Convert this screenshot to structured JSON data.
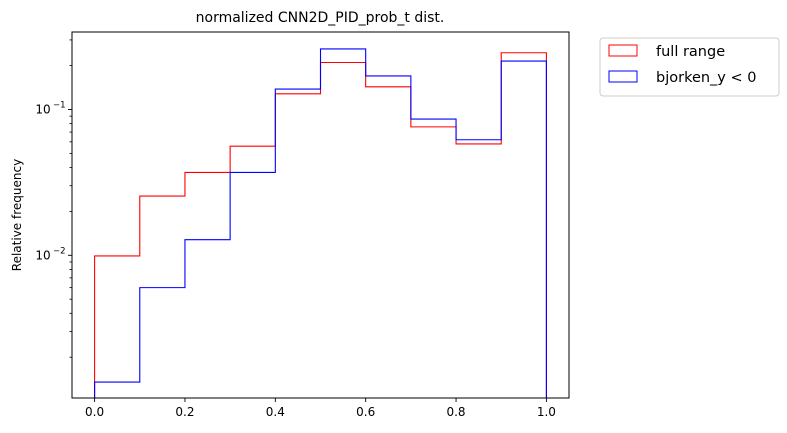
{
  "chart_data": {
    "type": "histogram-step",
    "title": "normalized CNN2D_PID_prob_t dist.",
    "xlabel": "",
    "ylabel": "Relative frequency",
    "yscale": "log",
    "xlim": [
      -0.05,
      1.05
    ],
    "ylim": [
      0.00105,
      0.34
    ],
    "grid": false,
    "legend_position": "outside-top-right",
    "bin_edges": [
      0.0,
      0.1,
      0.2,
      0.3,
      0.4,
      0.5,
      0.6,
      0.7,
      0.8,
      0.9,
      1.0
    ],
    "x_ticks": [
      {
        "value": 0.0,
        "label": "0.0"
      },
      {
        "value": 0.2,
        "label": "0.2"
      },
      {
        "value": 0.4,
        "label": "0.4"
      },
      {
        "value": 0.6,
        "label": "0.6"
      },
      {
        "value": 0.8,
        "label": "0.8"
      },
      {
        "value": 1.0,
        "label": "1.0"
      }
    ],
    "y_ticks": [
      {
        "value": 0.01,
        "base": "10",
        "exp": "−2"
      },
      {
        "value": 0.1,
        "base": "10",
        "exp": "−1"
      }
    ],
    "series": [
      {
        "name": "full range",
        "color": "#ff0000",
        "values": [
          0.0099,
          0.0255,
          0.037,
          0.056,
          0.128,
          0.21,
          0.143,
          0.076,
          0.058,
          0.245
        ]
      },
      {
        "name": "bjorken_y < 0",
        "color": "#0000ff",
        "values": [
          0.00135,
          0.006,
          0.0128,
          0.037,
          0.138,
          0.26,
          0.17,
          0.086,
          0.062,
          0.215
        ]
      }
    ]
  }
}
